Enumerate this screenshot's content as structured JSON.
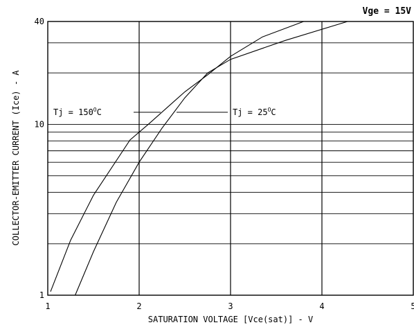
{
  "chart_data": {
    "type": "line",
    "title": "Vge = 15V",
    "xlabel": "SATURATION VOLTAGE [Vce(sat)] - V",
    "ylabel": "COLLECTOR-EMITTER CURRENT (Ice) - A",
    "xlim": [
      1,
      5
    ],
    "ylim": [
      1,
      40
    ],
    "y_scale": "log",
    "grid": true,
    "x_ticks": [
      1,
      2,
      3,
      4,
      5
    ],
    "x_tick_labels": [
      "1",
      "2",
      "3",
      "4",
      "5"
    ],
    "y_labeled_ticks": [
      1,
      10,
      40
    ],
    "y_tick_labels": [
      "1",
      "10",
      "40"
    ],
    "y_grid_values": [
      2,
      3,
      4,
      5,
      6,
      7,
      8,
      9,
      10,
      20,
      30
    ],
    "annotations": [
      {
        "text_main": "Tj = 150",
        "text_sup": "O",
        "text_unit": "C",
        "series": "Tj = 150°C"
      },
      {
        "text_main": "Tj = 25",
        "text_sup": "O",
        "text_unit": "C",
        "series": "Tj = 25°C"
      }
    ],
    "series": [
      {
        "name": "Tj = 150°C",
        "x": [
          1.03,
          1.25,
          1.5,
          1.9,
          2.1,
          2.5,
          2.75,
          3.0,
          3.35,
          3.8
        ],
        "y": [
          1.05,
          2.1,
          3.85,
          8.1,
          10.0,
          15.5,
          19.5,
          25.0,
          32.5,
          40.0
        ]
      },
      {
        "name": "Tj = 25°C",
        "x": [
          1.3,
          1.5,
          1.75,
          2.0,
          2.25,
          2.5,
          2.75,
          3.0,
          3.6,
          4.28
        ],
        "y": [
          1.0,
          1.8,
          3.5,
          6.0,
          9.5,
          14.3,
          20.0,
          24.0,
          31.0,
          40.0
        ]
      }
    ]
  }
}
